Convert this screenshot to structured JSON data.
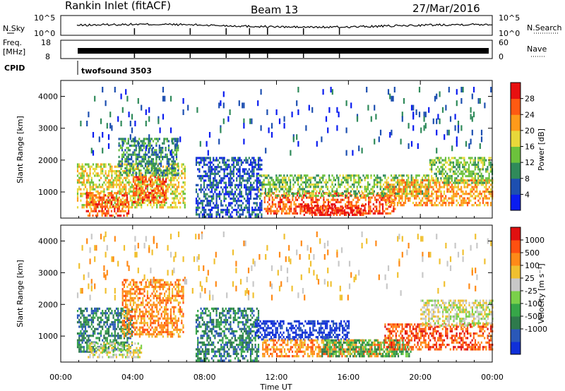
{
  "header": {
    "station": "Rankin Inlet (fitACF)",
    "beam": "Beam 13",
    "date": "27/Mar/2016"
  },
  "noise_panel": {
    "left_label": "N.Sky",
    "right_label": "N.Search",
    "y_ticks_left": [
      "10^5",
      "10^0"
    ],
    "y_ticks_right": [
      "10^5",
      "10^0"
    ]
  },
  "freq_panel": {
    "left_label_1": "Freq.",
    "left_label_2": "[MHz]",
    "right_label": "Nave",
    "y_ticks_left": [
      "18",
      "8"
    ],
    "y_ticks_right": [
      "60",
      "0"
    ]
  },
  "cpid": {
    "label": "CPID",
    "program": "twofsound 3503"
  },
  "chart_data": [
    {
      "type": "heatmap",
      "name": "power",
      "ylabel": "Slant Range [km]",
      "y_ticks": [
        1000,
        2000,
        3000,
        4000
      ],
      "ylim": [
        180,
        4500
      ],
      "xlim_hours": [
        0,
        24
      ],
      "colorbar_label": "Power [dB]",
      "colorbar_ticks": [
        "4",
        "8",
        "12",
        "16",
        "20",
        "24",
        "28"
      ],
      "colorbar_colors": [
        "#0a1cf0",
        "#1d4fb0",
        "#2f8a5a",
        "#6cc23c",
        "#e8d83a",
        "#ff9a1a",
        "#ff5a12",
        "#e81010"
      ],
      "bands": [
        {
          "t0": 0.9,
          "t1": 6.9,
          "r0": 500,
          "r1": 1900,
          "level": 4
        },
        {
          "t0": 3.2,
          "t1": 6.5,
          "r0": 1500,
          "r1": 2700,
          "level": 2
        },
        {
          "t0": 1.4,
          "t1": 3.8,
          "r0": 250,
          "r1": 1000,
          "level": 6
        },
        {
          "t0": 4.0,
          "t1": 5.9,
          "r0": 700,
          "r1": 1500,
          "level": 6
        },
        {
          "t0": 7.5,
          "t1": 11.2,
          "r0": 200,
          "r1": 2100,
          "level": 1
        },
        {
          "t0": 11.3,
          "t1": 18.6,
          "r0": 350,
          "r1": 1000,
          "level": 6
        },
        {
          "t0": 11.0,
          "t1": 20.5,
          "r0": 900,
          "r1": 1550,
          "level": 3
        },
        {
          "t0": 13.5,
          "t1": 16.9,
          "r0": 300,
          "r1": 600,
          "level": 7
        },
        {
          "t0": 18.0,
          "t1": 24.0,
          "r0": 600,
          "r1": 1400,
          "level": 5
        },
        {
          "t0": 20.5,
          "t1": 24.0,
          "r0": 1300,
          "r1": 2100,
          "level": 3
        },
        {
          "t0": 0.9,
          "t1": 24.0,
          "r0": 2300,
          "r1": 4300,
          "level": 1
        }
      ]
    },
    {
      "type": "heatmap",
      "name": "velocity",
      "ylabel": "Slant Range [km]",
      "y_ticks": [
        1000,
        2000,
        3000,
        4000
      ],
      "ylim": [
        180,
        4500
      ],
      "xlim_hours": [
        0,
        24
      ],
      "colorbar_label": "Velocity [m s⁻¹]",
      "colorbar_ticks": [
        "1000",
        "500",
        "100",
        "25",
        "-25",
        "-100",
        "-500",
        "-1000"
      ],
      "colorbar_colors": [
        "#1030d8",
        "#2a58b8",
        "#2e7a4c",
        "#36a648",
        "#7ad04a",
        "#c8c8c8",
        "#f0c030",
        "#ff8a18",
        "#ff5010",
        "#e01010"
      ],
      "bands": [
        {
          "t0": 0.9,
          "t1": 4.0,
          "r0": 500,
          "r1": 1900,
          "level": 2
        },
        {
          "t0": 3.4,
          "t1": 6.8,
          "r0": 1000,
          "r1": 2800,
          "level": 7
        },
        {
          "t0": 1.5,
          "t1": 4.5,
          "r0": 350,
          "r1": 800,
          "level": 5
        },
        {
          "t0": 7.5,
          "t1": 11.0,
          "r0": 250,
          "r1": 1900,
          "level": 2
        },
        {
          "t0": 10.8,
          "t1": 16.0,
          "r0": 900,
          "r1": 1500,
          "level": 0
        },
        {
          "t0": 11.2,
          "t1": 18.5,
          "r0": 350,
          "r1": 900,
          "level": 7
        },
        {
          "t0": 14.5,
          "t1": 19.5,
          "r0": 400,
          "r1": 900,
          "level": 3
        },
        {
          "t0": 18.0,
          "t1": 24.0,
          "r0": 600,
          "r1": 1400,
          "level": 8
        },
        {
          "t0": 20.0,
          "t1": 24.0,
          "r0": 1300,
          "r1": 2150,
          "level": 5
        },
        {
          "t0": 0.9,
          "t1": 24.0,
          "r0": 2300,
          "r1": 4300,
          "level": 6
        }
      ]
    }
  ],
  "x_axis": {
    "label": "Time UT",
    "ticks": [
      "00:00",
      "04:00",
      "08:00",
      "12:00",
      "16:00",
      "20:00",
      "00:00"
    ]
  }
}
